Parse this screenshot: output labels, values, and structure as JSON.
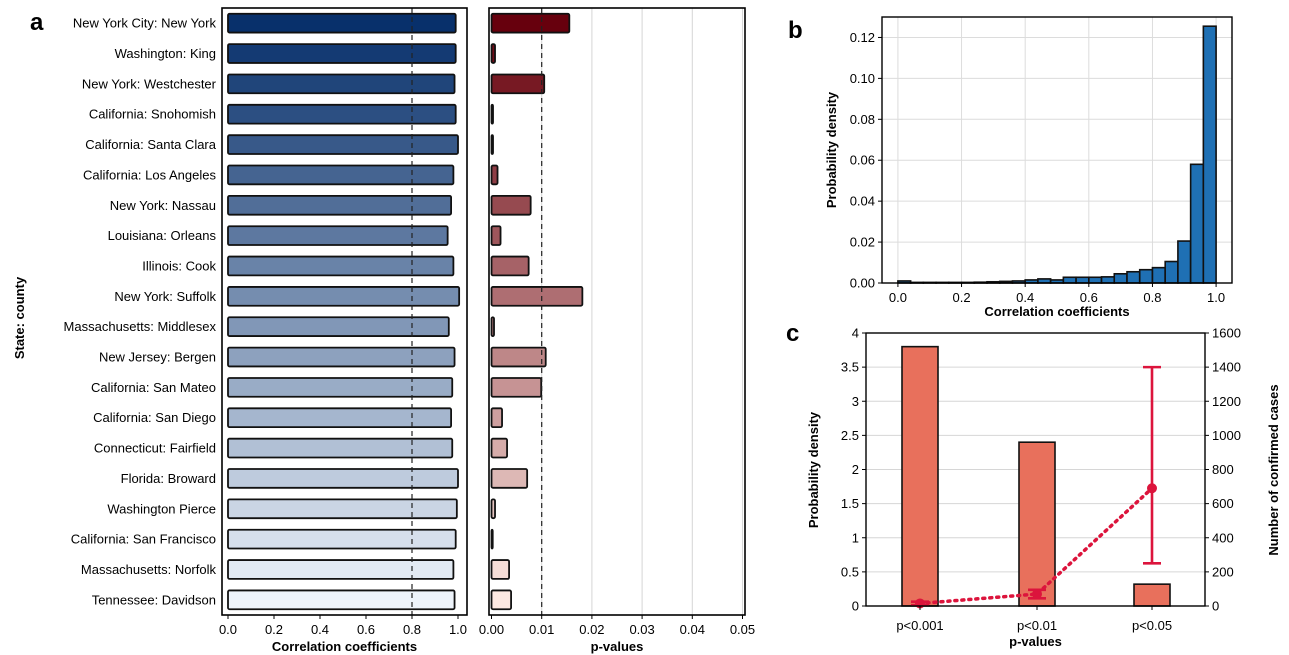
{
  "panel_labels": {
    "a": "a",
    "b": "b",
    "c": "c"
  },
  "colors": {
    "corr_dark": "#08306b",
    "corr_light": "#eef4fb",
    "pval_dark": "#67000d",
    "pval_light": "#fde9e2",
    "hist_fill": "#1f70b4",
    "bar_c": "#e8705c",
    "line_c": "#dc143c"
  },
  "chart_data": [
    {
      "id": "a-left",
      "type": "bar",
      "orientation": "horizontal",
      "ylabel": "State: county",
      "xlabel": "Correlation coefficients",
      "categories": [
        "New York City: New York",
        "Washington: King",
        "New York: Westchester",
        "California: Snohomish",
        "California: Santa Clara",
        "California: Los Angeles",
        "New York: Nassau",
        "Louisiana: Orleans",
        "Illinois: Cook",
        "New York: Suffolk",
        "Massachusetts: Middlesex",
        "New Jersey: Bergen",
        "California: San Mateo",
        "California: San Diego",
        "Connecticut: Fairfield",
        "Florida: Broward",
        "Washington Pierce",
        "California: San Francisco",
        "Massachusetts: Norfolk",
        "Tennessee: Davidson"
      ],
      "values": [
        0.99,
        0.99,
        0.985,
        0.99,
        1.0,
        0.98,
        0.97,
        0.955,
        0.98,
        1.005,
        0.96,
        0.985,
        0.975,
        0.97,
        0.975,
        1.0,
        0.995,
        0.99,
        0.98,
        0.985
      ],
      "xlim": [
        0.0,
        1.08
      ],
      "xticks": [
        "0.0",
        "0.2",
        "0.4",
        "0.6",
        "0.8",
        "1.0"
      ],
      "reference_line": 0.8
    },
    {
      "id": "a-right",
      "type": "bar",
      "orientation": "horizontal",
      "xlabel": "p-values",
      "values": [
        0.0155,
        0.0007,
        0.0105,
        0.0003,
        0.0003,
        0.0012,
        0.0078,
        0.0018,
        0.0074,
        0.0181,
        0.0005,
        0.0108,
        0.0099,
        0.0021,
        0.0031,
        0.0071,
        0.0007,
        0.0002,
        0.0035,
        0.0039
      ],
      "xlim": [
        -0.0005,
        0.0505
      ],
      "xticks": [
        "0.00",
        "0.01",
        "0.02",
        "0.03",
        "0.04",
        "0.05"
      ],
      "reference_line": 0.01,
      "grid": "vertical"
    },
    {
      "id": "b",
      "type": "bar",
      "subtype": "histogram",
      "xlabel": "Correlation coefficients",
      "ylabel": "Probability density",
      "bin_width": 0.04,
      "bin_starts": [
        0.0,
        0.04,
        0.08,
        0.12,
        0.16,
        0.2,
        0.24,
        0.28,
        0.32,
        0.36,
        0.4,
        0.44,
        0.48,
        0.52,
        0.56,
        0.6,
        0.64,
        0.68,
        0.72,
        0.76,
        0.8,
        0.84,
        0.88,
        0.92,
        0.96
      ],
      "values": [
        0.001,
        0.0003,
        0.0003,
        0.0003,
        0.0003,
        0.0003,
        0.0004,
        0.0006,
        0.0008,
        0.001,
        0.0015,
        0.002,
        0.0015,
        0.0028,
        0.0028,
        0.0028,
        0.003,
        0.0045,
        0.0055,
        0.0065,
        0.0075,
        0.0105,
        0.0205,
        0.058,
        0.1255
      ],
      "xlim": [
        -0.05,
        1.05
      ],
      "ylim": [
        0,
        0.13
      ],
      "xticks": [
        "0.0",
        "0.2",
        "0.4",
        "0.6",
        "0.8",
        "1.0"
      ],
      "yticks": [
        "0.00",
        "0.02",
        "0.04",
        "0.06",
        "0.08",
        "0.10",
        "0.12"
      ],
      "grid": true
    },
    {
      "id": "c",
      "type": "bar",
      "xlabel": "p-values",
      "ylabel": "Probability density",
      "y2label": "Number of confirmed cases",
      "categories": [
        "p<0.001",
        "p<0.01",
        "p<0.05"
      ],
      "values": [
        3.8,
        2.4,
        0.32
      ],
      "ylim": [
        0,
        4
      ],
      "yticks": [
        "0",
        "0.5",
        "1",
        "1.5",
        "2",
        "2.5",
        "3",
        "3.5",
        "4"
      ],
      "y2lim": [
        0,
        1600
      ],
      "y2ticks": [
        "0",
        "200",
        "400",
        "600",
        "800",
        "1000",
        "1200",
        "1400",
        "1600"
      ],
      "line_series": {
        "mean": [
          15,
          70,
          690
        ],
        "err_low": [
          5,
          45,
          250
        ],
        "err_high": [
          25,
          95,
          1400
        ]
      },
      "grid": "horizontal"
    }
  ]
}
